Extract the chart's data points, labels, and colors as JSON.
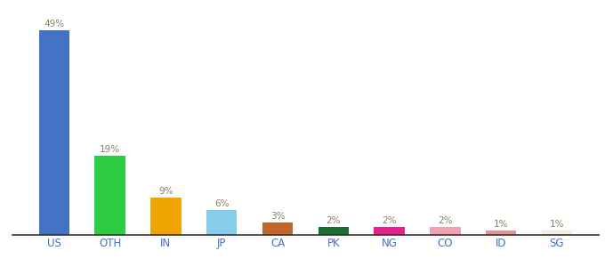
{
  "categories": [
    "US",
    "OTH",
    "IN",
    "JP",
    "CA",
    "PK",
    "NG",
    "CO",
    "ID",
    "SG"
  ],
  "values": [
    49,
    19,
    9,
    6,
    3,
    2,
    2,
    2,
    1,
    1
  ],
  "bar_colors": [
    "#4472c4",
    "#2ecc40",
    "#f0a500",
    "#87ceeb",
    "#c0652b",
    "#1a6e2e",
    "#e91e8c",
    "#f4a0b0",
    "#e89090",
    "#f0edd8"
  ],
  "label_color": "#8b8060",
  "tick_color": "#4472c4",
  "value_fontsize": 7.5,
  "xlabel_fontsize": 8.5,
  "ylim": [
    0,
    53
  ],
  "bar_width": 0.55,
  "background_color": "#ffffff"
}
